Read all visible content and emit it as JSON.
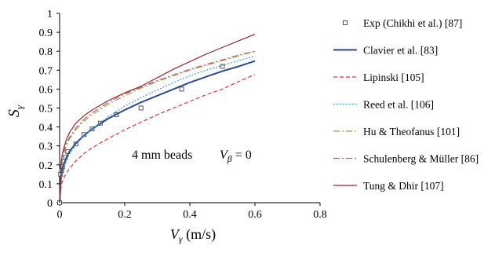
{
  "chart_data": {
    "type": "line",
    "xlabel_main": "V",
    "xlabel_sub": "γ",
    "xlabel_unit": " (m/s)",
    "ylabel_main": "S",
    "ylabel_sub": "γ",
    "xlim": [
      0,
      0.8
    ],
    "ylim": [
      0,
      1
    ],
    "xticks": [
      "0",
      "0.2",
      "0.4",
      "0.6",
      "0.8"
    ],
    "xtick_values": [
      0,
      0.2,
      0.4,
      0.6,
      0.8
    ],
    "yticks": [
      "0",
      "0.1",
      "0.2",
      "0.3",
      "0.4",
      "0.5",
      "0.6",
      "0.7",
      "0.8",
      "0.9",
      "1"
    ],
    "ytick_values": [
      0,
      0.1,
      0.2,
      0.3,
      0.4,
      0.5,
      0.6,
      0.7,
      0.8,
      0.9,
      1.0
    ],
    "grid": false,
    "legend_position": "right",
    "annotation_left": "4 mm beads",
    "annotation_right_main": "V",
    "annotation_right_sub": "β",
    "annotation_right_rest": " = 0",
    "series": [
      {
        "name": "Exp (Chikhi et al.) [87]",
        "kind": "markers",
        "marker": "square",
        "color": "#555555",
        "x": [
          0,
          0.003,
          0.006,
          0.009,
          0.013,
          0.018,
          0.025,
          0.05,
          0.075,
          0.1,
          0.125,
          0.175,
          0.25,
          0.375,
          0.5
        ],
        "y": [
          0,
          0.15,
          0.17,
          0.19,
          0.22,
          0.24,
          0.27,
          0.31,
          0.36,
          0.39,
          0.42,
          0.465,
          0.5,
          0.6,
          0.72
        ]
      },
      {
        "name": "Clavier et al. [83]",
        "kind": "line",
        "color": "#2e4a8f",
        "dash": "",
        "width": 2,
        "x": [
          0,
          0.005,
          0.01,
          0.02,
          0.03,
          0.05,
          0.075,
          0.1,
          0.15,
          0.2,
          0.25,
          0.3,
          0.35,
          0.4,
          0.45,
          0.5,
          0.55,
          0.6
        ],
        "y": [
          0,
          0.15,
          0.19,
          0.235,
          0.27,
          0.315,
          0.355,
          0.39,
          0.445,
          0.49,
          0.53,
          0.565,
          0.6,
          0.635,
          0.665,
          0.695,
          0.72,
          0.748
        ]
      },
      {
        "name": "Lipinski [105]",
        "kind": "line",
        "color": "#e0303a",
        "dash": "5,3",
        "width": 1.2,
        "x": [
          0,
          0.005,
          0.01,
          0.02,
          0.03,
          0.05,
          0.075,
          0.1,
          0.15,
          0.2,
          0.25,
          0.3,
          0.35,
          0.4,
          0.45,
          0.5,
          0.55,
          0.6
        ],
        "y": [
          0,
          0.09,
          0.12,
          0.155,
          0.18,
          0.22,
          0.26,
          0.29,
          0.34,
          0.385,
          0.425,
          0.465,
          0.5,
          0.535,
          0.57,
          0.6,
          0.64,
          0.677
        ]
      },
      {
        "name": "Reed et al. [106]",
        "kind": "line",
        "color": "#3aa0d8",
        "dash": "2,2",
        "width": 1.2,
        "x": [
          0,
          0.005,
          0.01,
          0.02,
          0.03,
          0.05,
          0.075,
          0.1,
          0.15,
          0.2,
          0.25,
          0.3,
          0.35,
          0.4,
          0.45,
          0.5,
          0.55,
          0.6
        ],
        "y": [
          0,
          0.13,
          0.17,
          0.22,
          0.255,
          0.305,
          0.355,
          0.39,
          0.455,
          0.51,
          0.555,
          0.595,
          0.635,
          0.67,
          0.7,
          0.725,
          0.75,
          0.775
        ]
      },
      {
        "name": "Hu & Theofanus [101]",
        "kind": "line",
        "color": "#7ab648",
        "dash": "8,3,2,3",
        "width": 1.2,
        "x": [
          0,
          0.005,
          0.01,
          0.02,
          0.03,
          0.05,
          0.075,
          0.1,
          0.15,
          0.2,
          0.25,
          0.3,
          0.35,
          0.4,
          0.45,
          0.5,
          0.55,
          0.6
        ],
        "y": [
          0,
          0.19,
          0.24,
          0.3,
          0.335,
          0.385,
          0.43,
          0.465,
          0.52,
          0.565,
          0.605,
          0.64,
          0.67,
          0.7,
          0.725,
          0.75,
          0.775,
          0.8
        ]
      },
      {
        "name": "Schulenberg & Müller [86]",
        "kind": "line",
        "color": "#d6507a",
        "dash": "8,3,2,3",
        "width": 1.2,
        "x": [
          0,
          0.005,
          0.01,
          0.02,
          0.03,
          0.05,
          0.075,
          0.1,
          0.15,
          0.2,
          0.25,
          0.3,
          0.35,
          0.4,
          0.45,
          0.5,
          0.55,
          0.6
        ],
        "y": [
          0,
          0.2,
          0.25,
          0.31,
          0.345,
          0.395,
          0.44,
          0.475,
          0.53,
          0.575,
          0.61,
          0.645,
          0.675,
          0.705,
          0.73,
          0.755,
          0.78,
          0.8
        ]
      },
      {
        "name": "Tung & Dhir [107]",
        "kind": "line",
        "color": "#8b2a2a",
        "dash": "",
        "width": 1.2,
        "x": [
          0,
          0.005,
          0.01,
          0.02,
          0.03,
          0.05,
          0.075,
          0.1,
          0.15,
          0.2,
          0.25,
          0.3,
          0.35,
          0.4,
          0.45,
          0.5,
          0.55,
          0.6
        ],
        "y": [
          0,
          0.22,
          0.27,
          0.33,
          0.37,
          0.42,
          0.46,
          0.49,
          0.54,
          0.58,
          0.615,
          0.66,
          0.705,
          0.745,
          0.785,
          0.82,
          0.855,
          0.89
        ]
      }
    ]
  }
}
